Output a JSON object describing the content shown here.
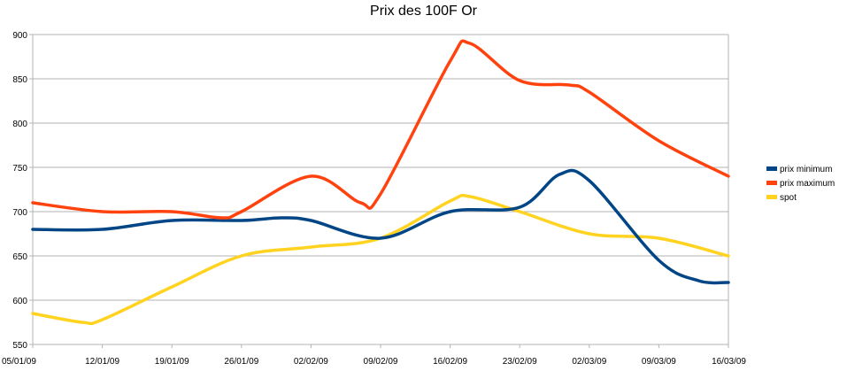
{
  "chart_data": {
    "type": "line",
    "title": "Prix des 100F Or",
    "xlabel": "",
    "ylabel": "",
    "ylim": [
      550,
      900
    ],
    "y_ticks": [
      550,
      600,
      650,
      700,
      750,
      800,
      850,
      900
    ],
    "x_tick_labels": [
      "05/01/09",
      "12/01/09",
      "19/01/09",
      "26/01/09",
      "02/02/09",
      "09/02/09",
      "16/02/09",
      "23/02/09",
      "02/03/09",
      "09/03/09",
      "16/03/09"
    ],
    "grid": true,
    "legend_position": "right",
    "x": [
      "05/01/09",
      "12/01/09",
      "19/01/09",
      "26/01/09",
      "02/02/09",
      "09/02/09",
      "16/02/09",
      "23/02/09",
      "02/03/09",
      "09/03/09",
      "16/03/09"
    ],
    "series": [
      {
        "name": "prix minimum",
        "color": "#004586",
        "points": [
          [
            "05/01/09",
            680
          ],
          [
            "12/01/09",
            680
          ],
          [
            "19/01/09",
            690
          ],
          [
            "26/01/09",
            690
          ],
          [
            "30/01/09",
            693
          ],
          [
            "02/02/09",
            690
          ],
          [
            "09/02/09",
            670
          ],
          [
            "16/02/09",
            700
          ],
          [
            "23/02/09",
            705
          ],
          [
            "27/02/09",
            742
          ],
          [
            "02/03/09",
            735
          ],
          [
            "09/03/09",
            645
          ],
          [
            "13/03/09",
            622
          ],
          [
            "16/03/09",
            620
          ]
        ]
      },
      {
        "name": "prix maximum",
        "color": "#ff420e",
        "points": [
          [
            "05/01/09",
            710
          ],
          [
            "12/01/09",
            700
          ],
          [
            "19/01/09",
            700
          ],
          [
            "24/01/09",
            693
          ],
          [
            "26/01/09",
            700
          ],
          [
            "02/02/09",
            740
          ],
          [
            "07/02/09",
            710
          ],
          [
            "09/02/09",
            720
          ],
          [
            "16/02/09",
            870
          ],
          [
            "18/02/09",
            890
          ],
          [
            "23/02/09",
            848
          ],
          [
            "28/02/09",
            843
          ],
          [
            "02/03/09",
            835
          ],
          [
            "09/03/09",
            780
          ],
          [
            "16/03/09",
            740
          ]
        ]
      },
      {
        "name": "spot",
        "color": "#ffd320",
        "points": [
          [
            "05/01/09",
            585
          ],
          [
            "10/01/09",
            575
          ],
          [
            "12/01/09",
            578
          ],
          [
            "19/01/09",
            615
          ],
          [
            "26/01/09",
            650
          ],
          [
            "02/02/09",
            660
          ],
          [
            "09/02/09",
            670
          ],
          [
            "16/02/09",
            712
          ],
          [
            "18/02/09",
            717
          ],
          [
            "23/02/09",
            700
          ],
          [
            "02/03/09",
            675
          ],
          [
            "09/03/09",
            670
          ],
          [
            "16/03/09",
            650
          ]
        ]
      }
    ]
  }
}
